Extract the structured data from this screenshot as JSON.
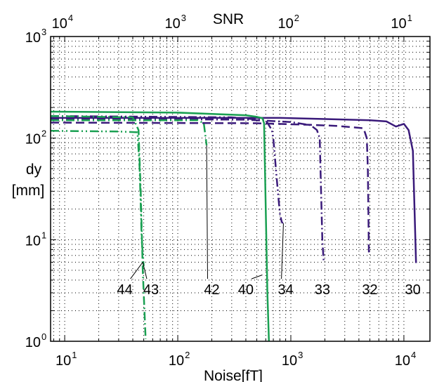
{
  "chart_data": {
    "type": "line",
    "title": "",
    "xlabel": "Noise[fT]",
    "x2label": "SNR",
    "ylabel_lines": [
      "dy",
      "[mm]"
    ],
    "x_scale": "log",
    "y_scale": "log",
    "xlim": [
      7.5,
      17000
    ],
    "ylim": [
      1,
      1000
    ],
    "grid": true,
    "x_ticks": [
      {
        "base": "10",
        "exp": "1",
        "value": 10
      },
      {
        "base": "10",
        "exp": "2",
        "value": 100
      },
      {
        "base": "10",
        "exp": "3",
        "value": 1000
      },
      {
        "base": "10",
        "exp": "4",
        "value": 10000
      }
    ],
    "x2_ticks": [
      {
        "base": "10",
        "exp": "4",
        "value": 8.5
      },
      {
        "base": "10",
        "exp": "3",
        "value": 85
      },
      {
        "base": "10",
        "exp": "2",
        "value": 850
      },
      {
        "base": "10",
        "exp": "1",
        "value": 8500
      }
    ],
    "y_ticks": [
      {
        "base": "10",
        "exp": "0",
        "value": 1
      },
      {
        "base": "10",
        "exp": "1",
        "value": 10
      },
      {
        "base": "10",
        "exp": "2",
        "value": 100
      },
      {
        "base": "10",
        "exp": "3",
        "value": 1000
      }
    ],
    "colors": {
      "purple": "#3a1a7a",
      "green": "#1aa052"
    },
    "series": [
      {
        "label": "30",
        "color": "#3a1a7a",
        "dash": "",
        "x": [
          7.5,
          300,
          800,
          2000,
          5000,
          7000,
          8500,
          10000,
          11000,
          12000,
          12800
        ],
        "y": [
          158,
          158,
          158,
          154,
          150,
          146,
          130,
          138,
          120,
          75,
          5.9
        ]
      },
      {
        "label": "32",
        "color": "#3a1a7a",
        "dash": "12 6",
        "x": [
          7.5,
          500,
          1500,
          2500,
          3500,
          4400,
          4700,
          4800,
          4900
        ],
        "y": [
          142,
          140,
          135,
          132,
          128,
          125,
          100,
          50,
          7.5
        ]
      },
      {
        "label": "33",
        "color": "#3a1a7a",
        "dash": "12 4 2 4",
        "x": [
          7.5,
          400,
          1000,
          1500,
          1700,
          1800,
          1850,
          1900,
          1950
        ],
        "y": [
          155,
          152,
          144,
          134,
          120,
          100,
          30,
          10,
          6.2
        ]
      },
      {
        "label": "34",
        "color": "#3a1a7a",
        "dash": "12 4 2 4 2 4",
        "x": [
          7.5,
          300,
          600,
          680,
          700,
          750,
          800,
          830,
          850
        ],
        "y": [
          165,
          160,
          150,
          120,
          100,
          40,
          18,
          15,
          14.5
        ]
      },
      {
        "label": "40",
        "color": "#1aa052",
        "dash": "",
        "x": [
          7.5,
          100,
          400,
          500,
          560,
          580,
          620,
          640
        ],
        "y": [
          182,
          178,
          168,
          162,
          157,
          140,
          3.0,
          1
        ]
      },
      {
        "label": "42",
        "color": "#1aa052",
        "dash": "12 4 2 4",
        "x": [
          7.5,
          150,
          170,
          180
        ],
        "y": [
          150,
          150,
          140,
          85
        ]
      },
      {
        "label": "43",
        "color": "#1aa052",
        "dash": "12 4 2 4 2 4",
        "x": [
          7.5,
          30,
          44,
          46,
          48,
          50
        ],
        "y": [
          118,
          116,
          114,
          50,
          10,
          5.5
        ]
      },
      {
        "label": "44",
        "color": "#1aa052",
        "dash": "12 4 2 4",
        "x": [
          7.5,
          40,
          45,
          47,
          49,
          52
        ],
        "y": [
          165,
          160,
          120,
          30,
          5,
          1.05
        ]
      }
    ],
    "annotations": [
      {
        "text": "44",
        "x": 34,
        "y": 2.9,
        "tip_x": 49,
        "tip_y": 6
      },
      {
        "text": "43",
        "x": 58,
        "y": 2.9,
        "tip_x": 49,
        "tip_y": 6
      },
      {
        "text": "42",
        "x": 200,
        "y": 2.9,
        "tip_x": 180,
        "tip_y": 85
      },
      {
        "text": "40",
        "x": 400,
        "y": 2.9,
        "tip_x": 560,
        "tip_y": 4.5
      },
      {
        "text": "34",
        "x": 900,
        "y": 2.9,
        "tip_x": 860,
        "tip_y": 14.5
      },
      {
        "text": "33",
        "x": 1900,
        "y": 2.9
      },
      {
        "text": "32",
        "x": 5000,
        "y": 2.9
      },
      {
        "text": "30",
        "x": 12000,
        "y": 2.9
      }
    ]
  }
}
